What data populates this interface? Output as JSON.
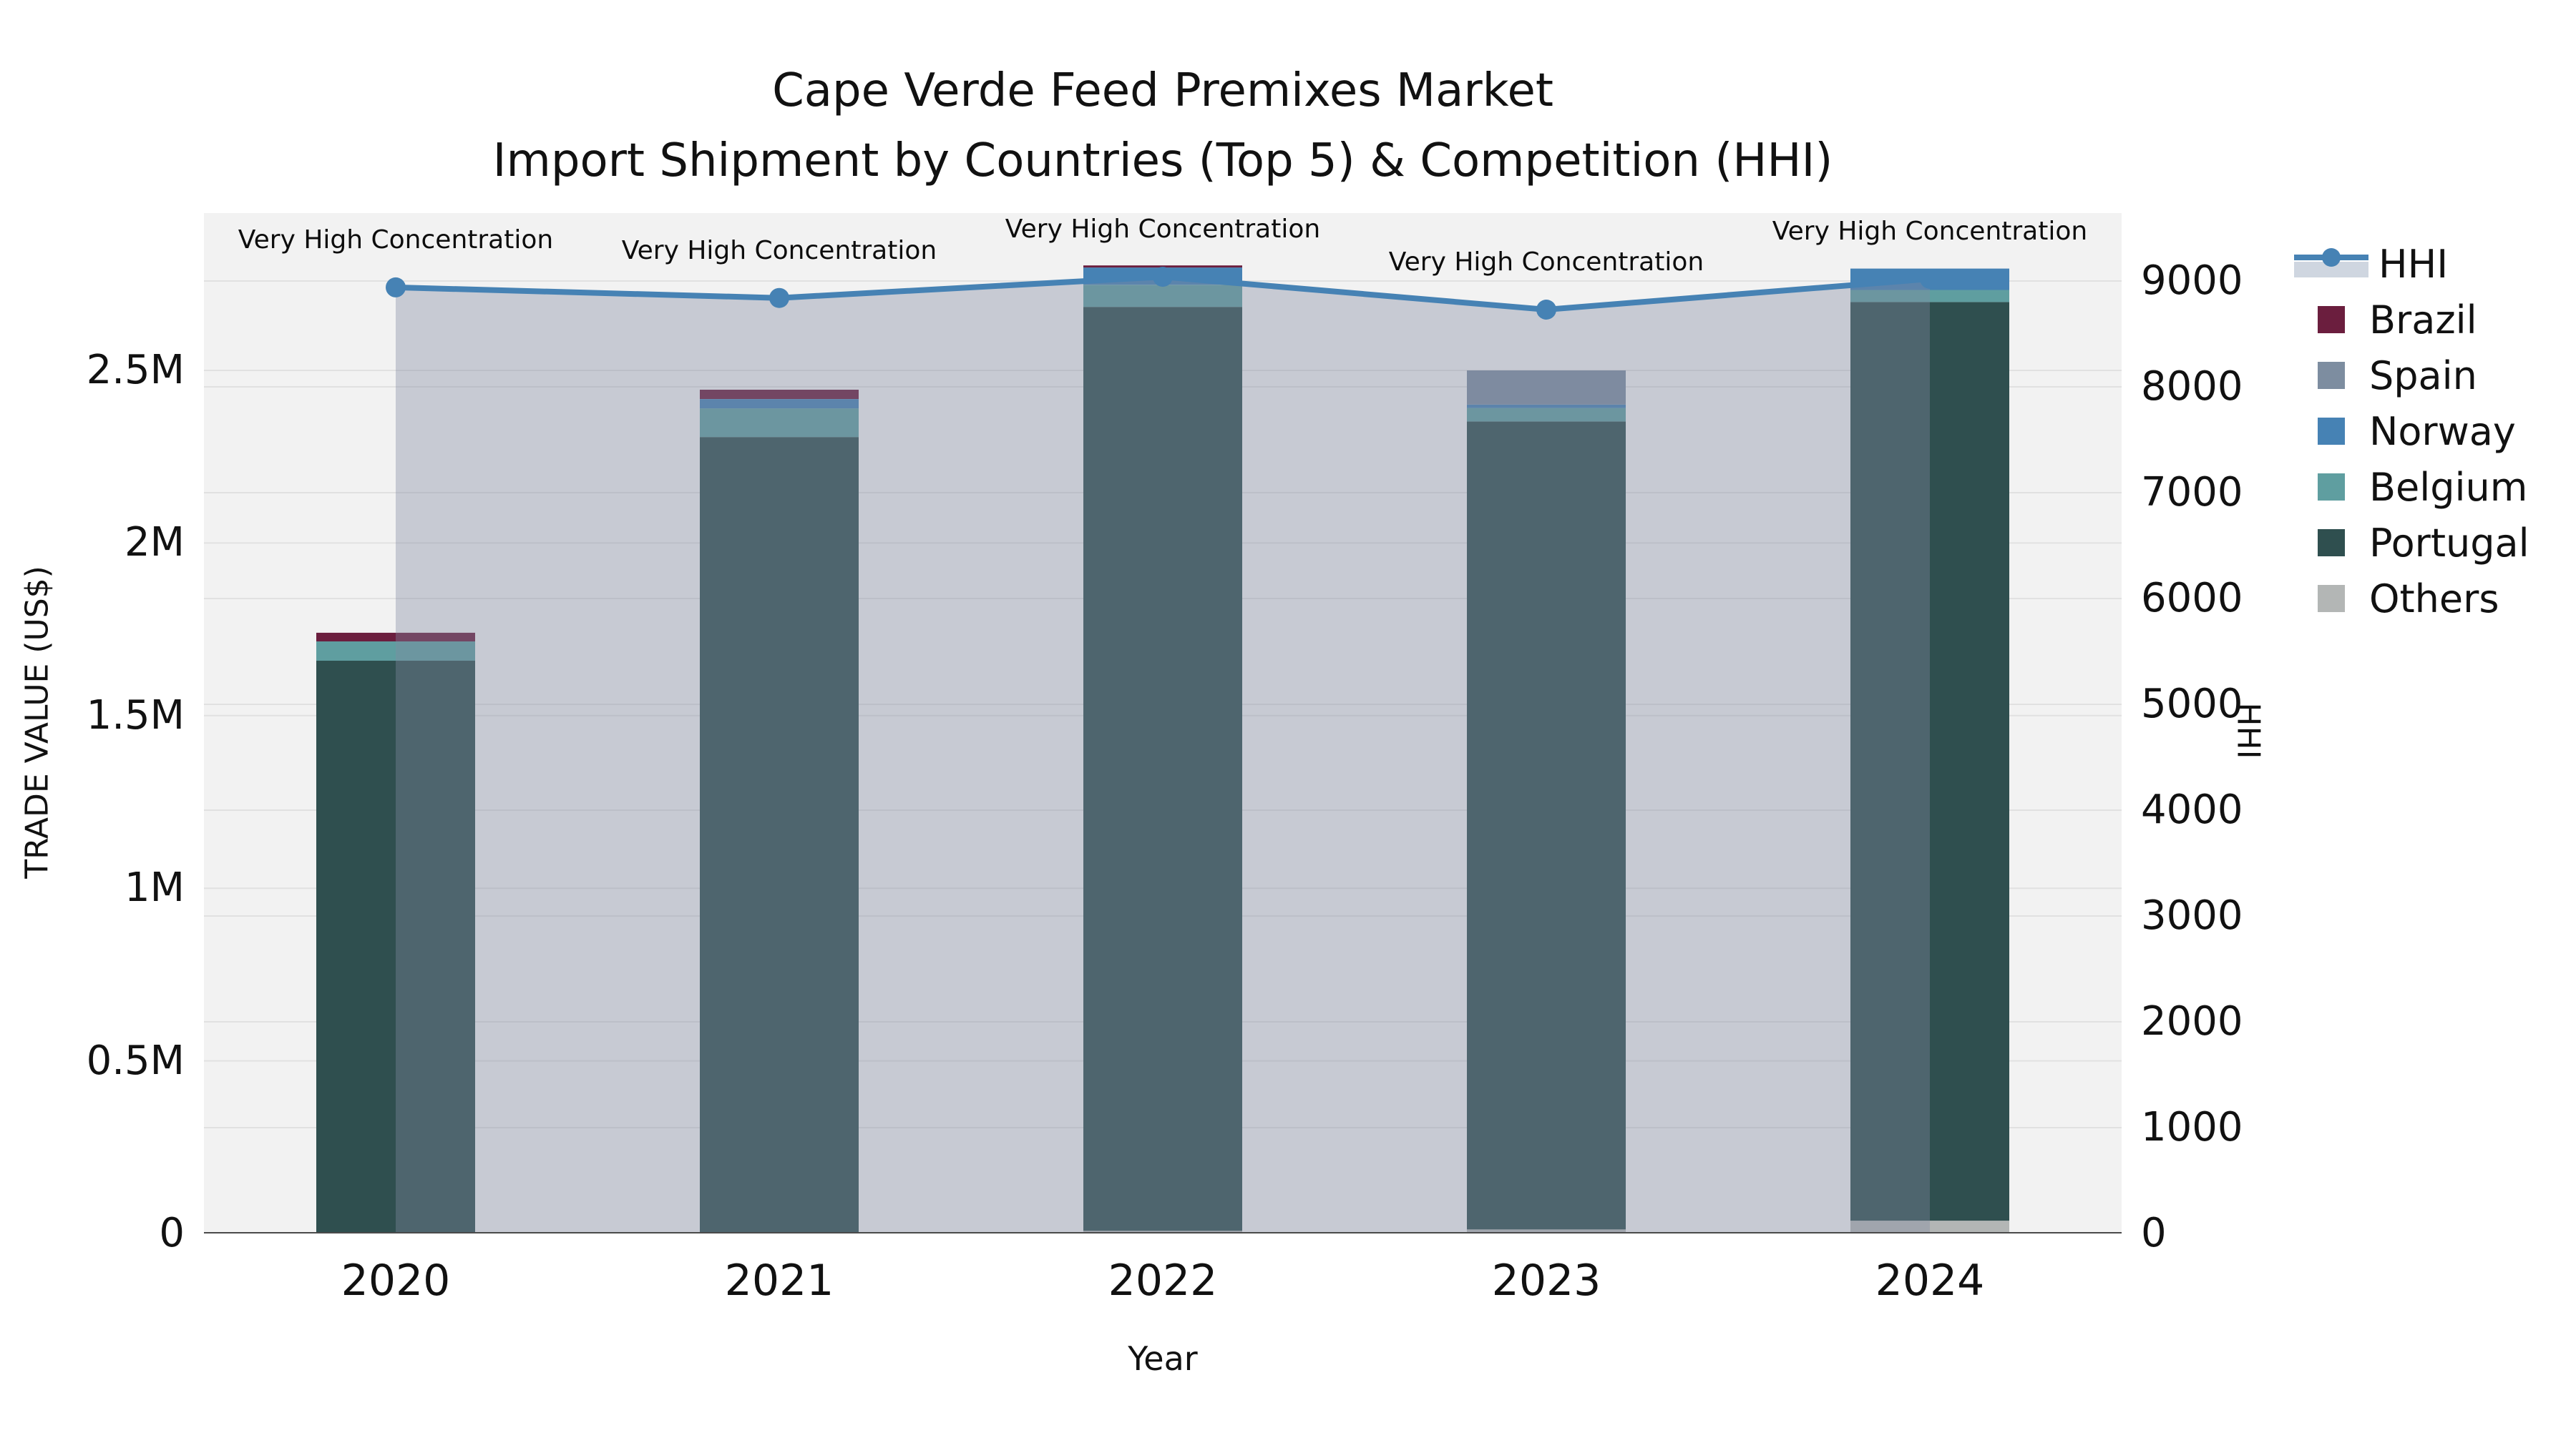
{
  "title": {
    "line1": "Cape Verde Feed Premixes Market",
    "line2": "Import Shipment by Countries (Top 5) & Competition (HHI)"
  },
  "axes": {
    "x": {
      "label": "Year",
      "ticks": [
        "2020",
        "2021",
        "2022",
        "2023",
        "2024"
      ]
    },
    "y_left": {
      "label": "TRADE VALUE (US$)",
      "ticks": [
        {
          "value": 0,
          "label": "0"
        },
        {
          "value": 500000,
          "label": "0.5M"
        },
        {
          "value": 1000000,
          "label": "1M"
        },
        {
          "value": 1500000,
          "label": "1.5M"
        },
        {
          "value": 2000000,
          "label": "2M"
        },
        {
          "value": 2500000,
          "label": "2.5M"
        }
      ]
    },
    "y_right": {
      "label": "HHI",
      "ticks": [
        {
          "value": 0,
          "label": "0"
        },
        {
          "value": 1000,
          "label": "1000"
        },
        {
          "value": 2000,
          "label": "2000"
        },
        {
          "value": 3000,
          "label": "3000"
        },
        {
          "value": 4000,
          "label": "4000"
        },
        {
          "value": 5000,
          "label": "5000"
        },
        {
          "value": 6000,
          "label": "6000"
        },
        {
          "value": 7000,
          "label": "7000"
        },
        {
          "value": 8000,
          "label": "8000"
        },
        {
          "value": 9000,
          "label": "9000"
        }
      ]
    }
  },
  "legend": {
    "items": [
      {
        "label": "HHI",
        "type": "line",
        "color": "#4682b4"
      },
      {
        "label": "Brazil",
        "type": "square",
        "color": "#6b1e3e"
      },
      {
        "label": "Spain",
        "type": "square",
        "color": "#7d8da0"
      },
      {
        "label": "Norway",
        "type": "square",
        "color": "#4682b4"
      },
      {
        "label": "Belgium",
        "type": "square",
        "color": "#5f9ea0"
      },
      {
        "label": "Portugal",
        "type": "square",
        "color": "#2f4f4f"
      },
      {
        "label": "Others",
        "type": "square",
        "color": "#b3b6b5"
      }
    ]
  },
  "chart_data": {
    "type": "combo-stacked-bar-and-line",
    "categories": [
      "2020",
      "2021",
      "2022",
      "2023",
      "2024"
    ],
    "bar_series": [
      {
        "name": "Brazil",
        "color": "#6b1e3e",
        "values": [
          25000,
          27000,
          6000,
          0,
          0
        ]
      },
      {
        "name": "Spain",
        "color": "#7d8da0",
        "values": [
          0,
          0,
          0,
          99000,
          0
        ]
      },
      {
        "name": "Norway",
        "color": "#4682b4",
        "values": [
          0,
          27000,
          50000,
          10000,
          62000
        ]
      },
      {
        "name": "Belgium",
        "color": "#5f9ea0",
        "values": [
          56000,
          83000,
          64000,
          39000,
          35000
        ]
      },
      {
        "name": "Portugal",
        "color": "#2f4f4f",
        "values": [
          1659000,
          2307000,
          2676000,
          2340000,
          2661000
        ]
      },
      {
        "name": "Others",
        "color": "#b3b6b5",
        "values": [
          0,
          0,
          8000,
          12000,
          37000
        ]
      }
    ],
    "stack_order_bottom_up": [
      "Others",
      "Portugal",
      "Belgium",
      "Norway",
      "Spain",
      "Brazil"
    ],
    "bar_totals": [
      1740000,
      2444000,
      2804000,
      2500000,
      2795000
    ],
    "line_series": {
      "name": "HHI",
      "color": "#4682b4",
      "area_fill": "rgba(130,138,160,0.38)",
      "values": [
        8940,
        8840,
        9040,
        8730,
        9020
      ]
    },
    "annotations": [
      {
        "category": "2020",
        "text": "Very High Concentration"
      },
      {
        "category": "2021",
        "text": "Very High Concentration"
      },
      {
        "category": "2022",
        "text": "Very High Concentration"
      },
      {
        "category": "2023",
        "text": "Very High Concentration"
      },
      {
        "category": "2024",
        "text": "Very High Concentration"
      }
    ],
    "y_left_range": [
      0,
      2955000
    ],
    "y_right_range": [
      0,
      9640
    ],
    "grid": true,
    "legend_position": "right-outside"
  },
  "colors": {
    "plot_background": "#f2f2f2",
    "gridline": "#e1e1e1",
    "axis_line": "#4a4a4a",
    "text": "#111111"
  }
}
